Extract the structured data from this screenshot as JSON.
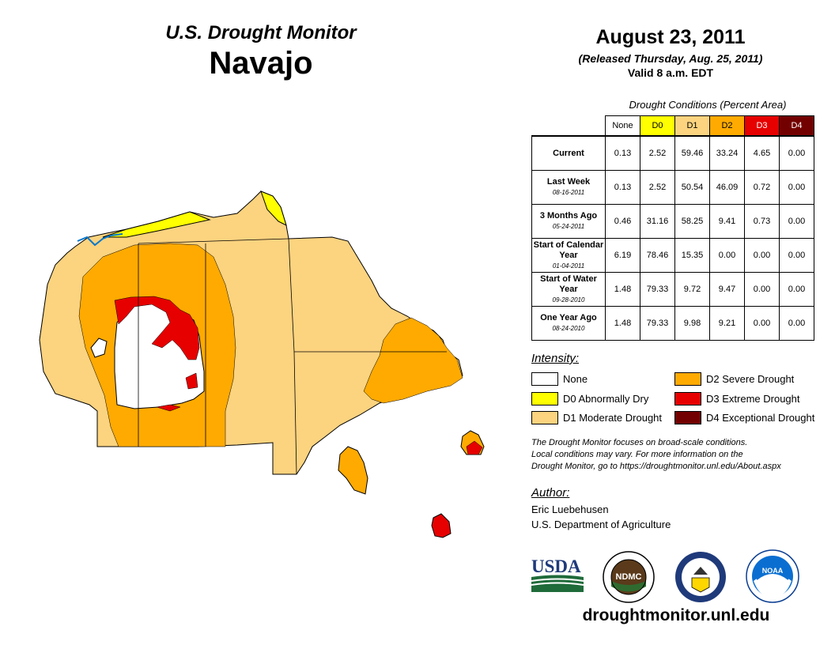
{
  "header": {
    "subtitle": "U.S. Drought Monitor",
    "region": "Navajo",
    "date": "August 23, 2011",
    "released": "(Released Thursday, Aug. 25, 2011)",
    "valid": "Valid 8 a.m. EDT"
  },
  "table": {
    "caption": "Drought Conditions (Percent Area)",
    "columns": [
      {
        "label": "None",
        "color": "#ffffff",
        "text_color": "#000000"
      },
      {
        "label": "D0",
        "color": "#ffff00",
        "text_color": "#000000"
      },
      {
        "label": "D1",
        "color": "#fcd37f",
        "text_color": "#000000"
      },
      {
        "label": "D2",
        "color": "#ffaa00",
        "text_color": "#000000"
      },
      {
        "label": "D3",
        "color": "#e60000",
        "text_color": "#ffffff"
      },
      {
        "label": "D4",
        "color": "#730000",
        "text_color": "#ffffff"
      }
    ],
    "rows": [
      {
        "label": "Current",
        "date": "",
        "values": [
          "0.13",
          "2.52",
          "59.46",
          "33.24",
          "4.65",
          "0.00"
        ]
      },
      {
        "label": "Last Week",
        "date": "08-16-2011",
        "values": [
          "0.13",
          "2.52",
          "50.54",
          "46.09",
          "0.72",
          "0.00"
        ]
      },
      {
        "label": "3 Months Ago",
        "date": "05-24-2011",
        "values": [
          "0.46",
          "31.16",
          "58.25",
          "9.41",
          "0.73",
          "0.00"
        ]
      },
      {
        "label": "Start of Calendar Year",
        "date": "01-04-2011",
        "values": [
          "6.19",
          "78.46",
          "15.35",
          "0.00",
          "0.00",
          "0.00"
        ]
      },
      {
        "label": "Start of Water Year",
        "date": "09-28-2010",
        "values": [
          "1.48",
          "79.33",
          "9.72",
          "9.47",
          "0.00",
          "0.00"
        ]
      },
      {
        "label": "One Year Ago",
        "date": "08-24-2010",
        "values": [
          "1.48",
          "79.33",
          "9.98",
          "9.21",
          "0.00",
          "0.00"
        ]
      }
    ]
  },
  "legend": {
    "title": "Intensity:",
    "items": [
      {
        "label": "None",
        "color": "#ffffff"
      },
      {
        "label": "D0 Abnormally Dry",
        "color": "#ffff00"
      },
      {
        "label": "D1 Moderate Drought",
        "color": "#fcd37f"
      },
      {
        "label": "D2 Severe Drought",
        "color": "#ffaa00"
      },
      {
        "label": "D3 Extreme Drought",
        "color": "#e60000"
      },
      {
        "label": "D4 Exceptional Drought",
        "color": "#730000"
      }
    ]
  },
  "note": {
    "line1": "The Drought Monitor focuses on broad-scale conditions.",
    "line2": "Local conditions may vary. For more information on the",
    "line3": "Drought Monitor, go to https://droughtmonitor.unl.edu/About.aspx"
  },
  "author": {
    "title": "Author:",
    "name": "Eric Luebehusen",
    "org": "U.S. Department of Agriculture"
  },
  "logos": {
    "usda": "USDA",
    "ndmc": "NDMC",
    "noaa": "NOAA"
  },
  "footer": {
    "website": "droughtmonitor.unl.edu"
  }
}
